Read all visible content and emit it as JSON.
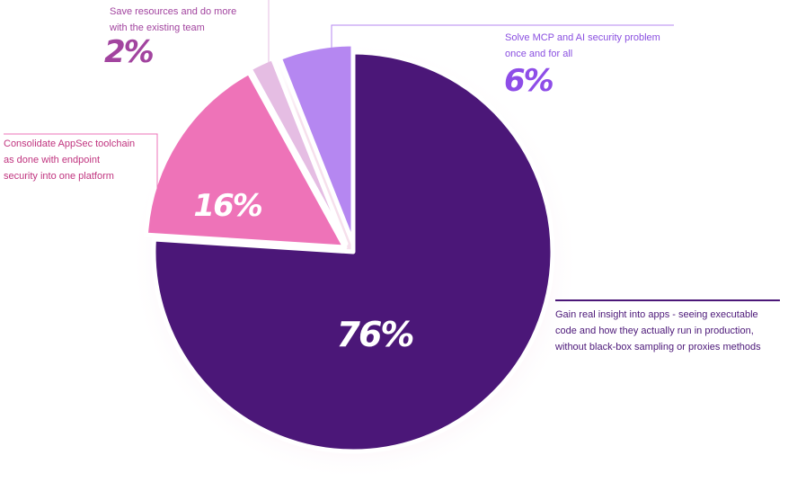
{
  "chart_data": {
    "type": "pie",
    "slices": [
      {
        "label": "Gain real insight into apps - seeing executable\ncode and how they actually run in production,\nwithout black-box sampling or proxies methods",
        "value": 76,
        "value_label": "76%",
        "color": "#4b1778"
      },
      {
        "label": "Consolidate AppSec toolchain\nas done with endpoint\nsecurity into one platform",
        "value": 16,
        "value_label": "16%",
        "color": "#ee73b8"
      },
      {
        "label": "Save resources and do more\nwith the existing team",
        "value": 2,
        "value_label": "2%",
        "color": "#e5bde3"
      },
      {
        "label": "Solve MCP and AI security problem\nonce and for all",
        "value": 6,
        "value_label": "6%",
        "color": "#b587f1"
      }
    ],
    "label_colors": [
      "#4b1778",
      "#c0347f",
      "#a2449f",
      "#8a4fe0"
    ],
    "percent_colors": [
      "#ffffff",
      "#ffffff",
      "#a2449f",
      "#8e4de8"
    ]
  }
}
